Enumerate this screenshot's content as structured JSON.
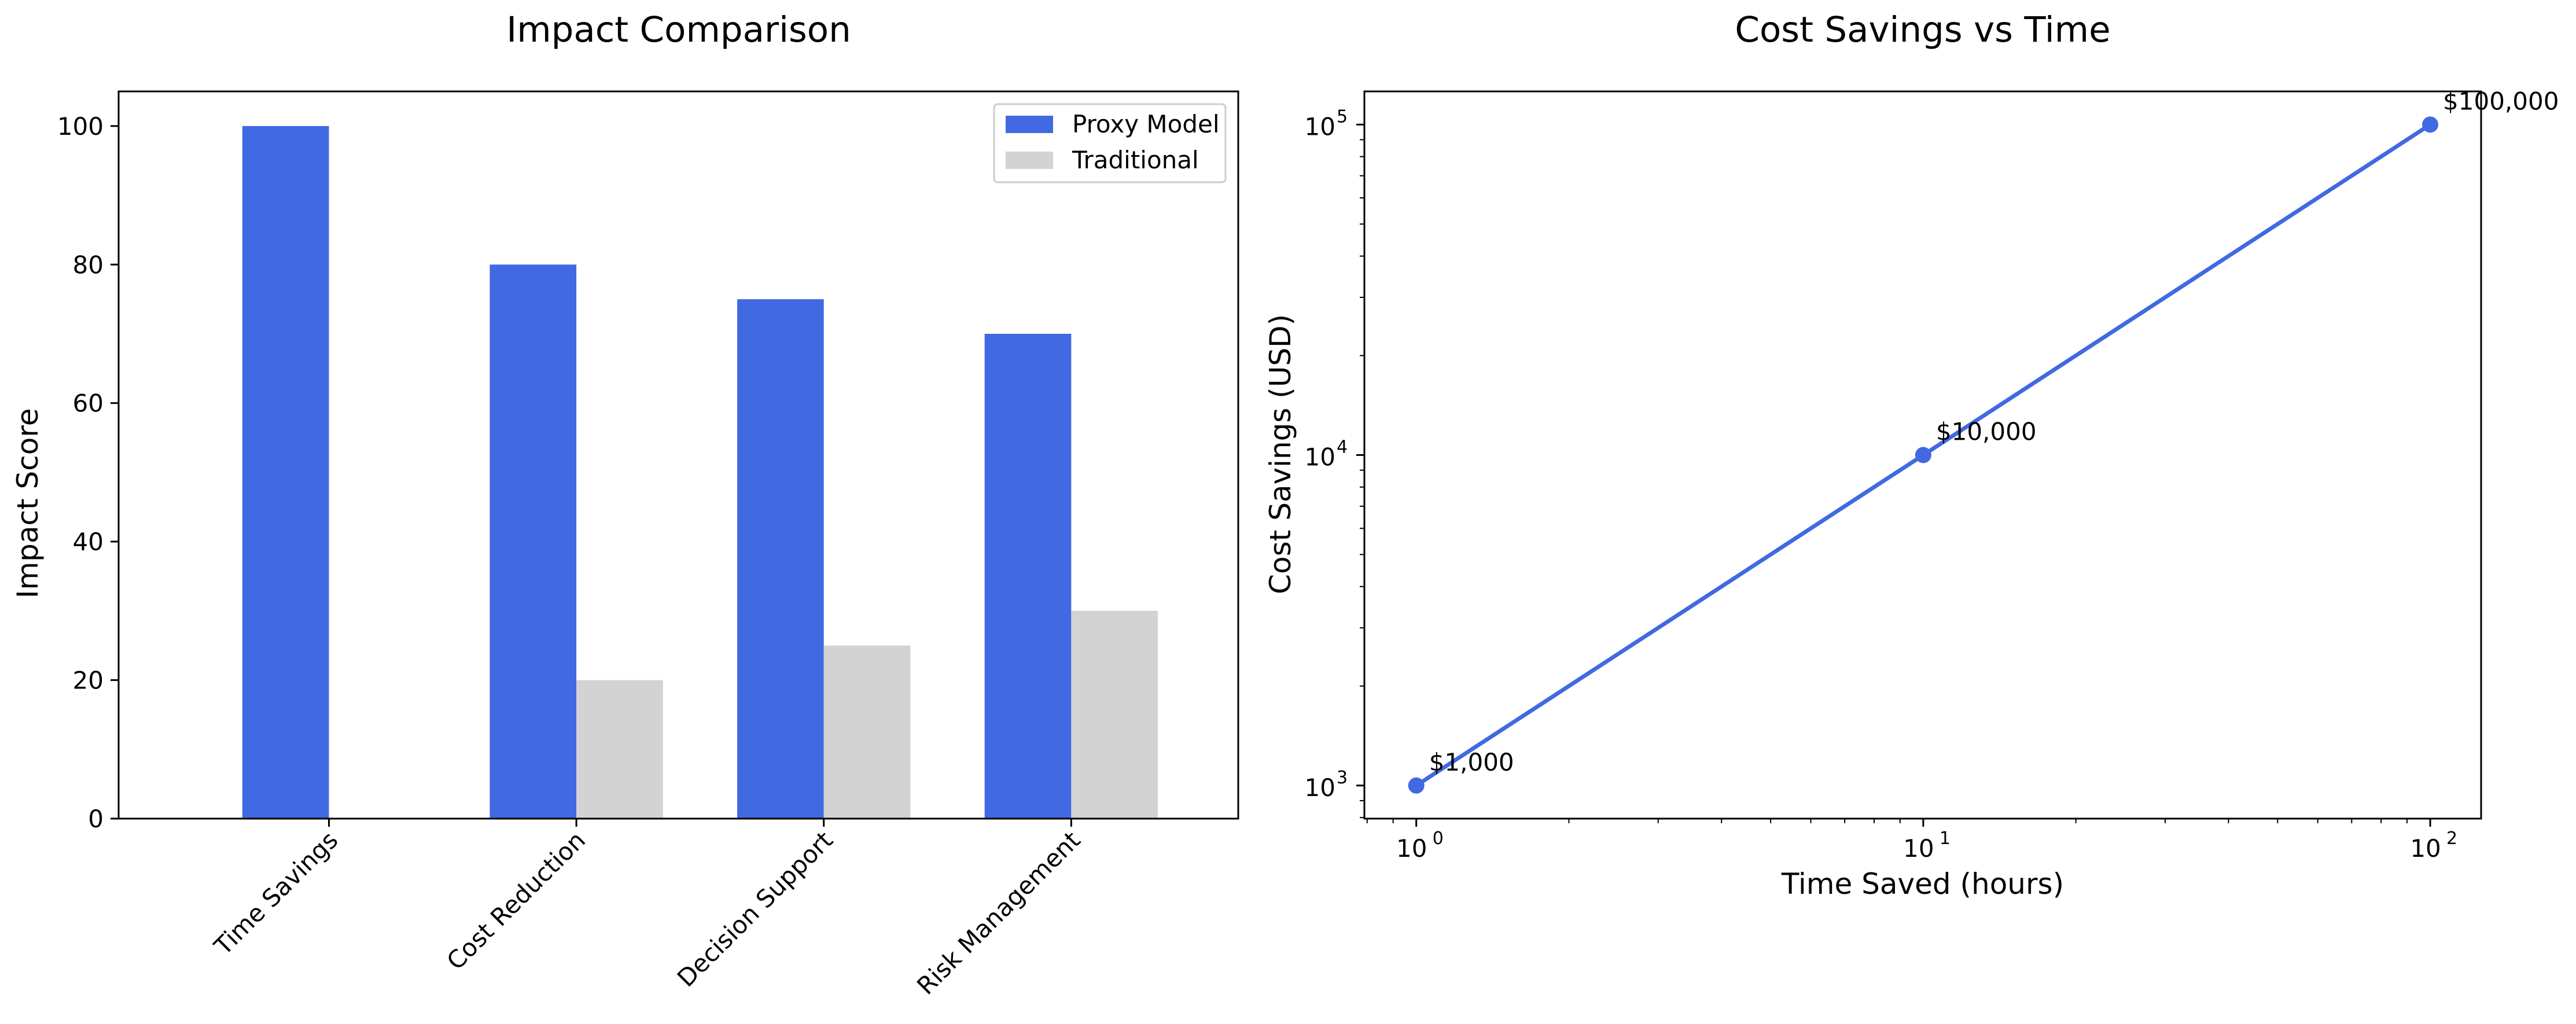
{
  "chart_data": [
    {
      "type": "bar",
      "title": "Impact Comparison",
      "xlabel": "",
      "ylabel": "Impact Score",
      "categories": [
        "Time Savings",
        "Cost Reduction",
        "Decision Support",
        "Risk Management"
      ],
      "series": [
        {
          "name": "Proxy Model",
          "values": [
            100,
            80,
            75,
            70
          ],
          "color": "#4169e1"
        },
        {
          "name": "Traditional",
          "values": [
            0,
            20,
            25,
            30
          ],
          "color": "#d3d3d3"
        }
      ],
      "ylim": [
        0,
        105
      ],
      "yticks": [
        0,
        20,
        40,
        60,
        80,
        100
      ],
      "legend": "top-right",
      "grid": false
    },
    {
      "type": "line",
      "title": "Cost Savings vs Time",
      "xlabel": "Time Saved (hours)",
      "ylabel": "Cost Savings (USD)",
      "xscale": "log",
      "yscale": "log",
      "x": [
        1,
        10,
        100
      ],
      "y": [
        1000,
        10000,
        100000
      ],
      "labels": [
        "$1,000",
        "$10,000",
        "$100,000"
      ],
      "color": "#4169e1",
      "marker": "circle",
      "xlim": [
        0.79,
        126
      ],
      "ylim": [
        794,
        126000
      ],
      "xticks": [
        {
          "base": "10",
          "exp": "0",
          "value": 1
        },
        {
          "base": "10",
          "exp": "1",
          "value": 10
        },
        {
          "base": "10",
          "exp": "2",
          "value": 100
        }
      ],
      "yticks": [
        {
          "base": "10",
          "exp": "3",
          "value": 1000
        },
        {
          "base": "10",
          "exp": "4",
          "value": 10000
        },
        {
          "base": "10",
          "exp": "5",
          "value": 100000
        }
      ],
      "grid": false
    }
  ]
}
